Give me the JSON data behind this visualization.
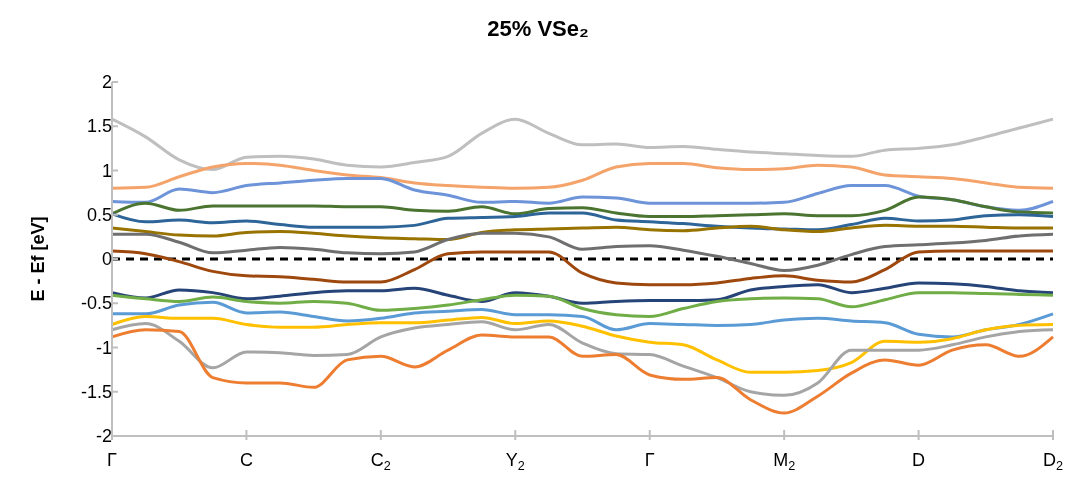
{
  "chart_data": {
    "type": "line",
    "title": "25% VSe₂",
    "ylabel": "E - Ef [eV]",
    "categories": [
      "Γ",
      null,
      null,
      null,
      "C",
      null,
      null,
      null,
      "C$_{2}$",
      null,
      null,
      null,
      "Y$_{2}$",
      null,
      null,
      null,
      "Γ",
      null,
      null,
      null,
      "M$_{2}$",
      null,
      null,
      null,
      "D",
      null,
      null,
      null,
      "D$_{2}$"
    ],
    "ylim": [
      -2,
      2
    ],
    "yticks": [
      -2,
      -1.5,
      -1,
      -0.5,
      0,
      0.5,
      1,
      1.5,
      2
    ],
    "grid": false,
    "legend": false,
    "marker": "none",
    "line_style": "solid",
    "ref_lines": [
      {
        "axis": "y",
        "value": 0,
        "color": "#000000",
        "line_style": "dashed"
      }
    ],
    "series": [
      {
        "color": "#bfbfbf",
        "values": [
          1.58,
          1.38,
          1.12,
          1.01,
          1.15,
          1.16,
          1.13,
          1.06,
          1.04,
          1.09,
          1.16,
          1.42,
          1.58,
          1.42,
          1.29,
          1.3,
          1.26,
          1.27,
          1.24,
          1.21,
          1.19,
          1.17,
          1.16,
          1.23,
          1.25,
          1.29,
          1.38,
          1.48,
          1.58
        ]
      },
      {
        "color": "#f4a46a",
        "values": [
          0.8,
          0.81,
          0.93,
          1.04,
          1.08,
          1.06,
          1,
          0.95,
          0.92,
          0.86,
          0.83,
          0.81,
          0.8,
          0.81,
          0.89,
          1.04,
          1.08,
          1.08,
          1.03,
          1.01,
          1.02,
          1.06,
          1.04,
          0.95,
          0.93,
          0.91,
          0.86,
          0.81,
          0.8
        ]
      },
      {
        "color": "#6d93d8",
        "values": [
          0.65,
          0.64,
          0.79,
          0.75,
          0.83,
          0.86,
          0.89,
          0.91,
          0.91,
          0.78,
          0.72,
          0.64,
          0.65,
          0.63,
          0.7,
          0.69,
          0.63,
          0.63,
          0.63,
          0.63,
          0.64,
          0.74,
          0.83,
          0.83,
          0.71,
          0.67,
          0.59,
          0.55,
          0.65
        ]
      },
      {
        "color": "#4a7430",
        "values": [
          0.51,
          0.63,
          0.55,
          0.6,
          0.6,
          0.6,
          0.6,
          0.59,
          0.59,
          0.55,
          0.54,
          0.59,
          0.51,
          0.57,
          0.58,
          0.52,
          0.48,
          0.48,
          0.49,
          0.5,
          0.51,
          0.49,
          0.49,
          0.55,
          0.7,
          0.67,
          0.59,
          0.53,
          0.52
        ]
      },
      {
        "color": "#2e6599",
        "values": [
          0.51,
          0.42,
          0.44,
          0.41,
          0.43,
          0.39,
          0.36,
          0.36,
          0.36,
          0.38,
          0.46,
          0.47,
          0.48,
          0.52,
          0.52,
          0.44,
          0.42,
          0.4,
          0.37,
          0.35,
          0.34,
          0.33,
          0.39,
          0.46,
          0.43,
          0.44,
          0.49,
          0.5,
          0.48
        ]
      },
      {
        "color": "#997300",
        "values": [
          0.35,
          0.31,
          0.27,
          0.26,
          0.3,
          0.31,
          0.29,
          0.26,
          0.24,
          0.23,
          0.22,
          0.3,
          0.33,
          0.34,
          0.35,
          0.36,
          0.33,
          0.32,
          0.35,
          0.37,
          0.33,
          0.31,
          0.35,
          0.38,
          0.37,
          0.37,
          0.36,
          0.35,
          0.35
        ]
      },
      {
        "color": "#6f6f6f",
        "values": [
          0.28,
          0.28,
          0.19,
          0.07,
          0.1,
          0.13,
          0.11,
          0.07,
          0.06,
          0.08,
          0.22,
          0.29,
          0.29,
          0.25,
          0.11,
          0.14,
          0.15,
          0.1,
          0.03,
          -0.05,
          -0.13,
          -0.07,
          0.05,
          0.14,
          0.16,
          0.18,
          0.21,
          0.26,
          0.28
        ]
      },
      {
        "color": "#9e480e",
        "values": [
          0.09,
          0.06,
          -0.03,
          -0.14,
          -0.19,
          -0.2,
          -0.23,
          -0.26,
          -0.26,
          -0.12,
          0.06,
          0.08,
          0.08,
          0.08,
          -0.16,
          -0.27,
          -0.29,
          -0.29,
          -0.27,
          -0.22,
          -0.19,
          -0.24,
          -0.26,
          -0.12,
          0.08,
          0.09,
          0.09,
          0.09,
          0.09
        ]
      },
      {
        "color": "#264478",
        "values": [
          -0.38,
          -0.44,
          -0.35,
          -0.38,
          -0.45,
          -0.42,
          -0.38,
          -0.36,
          -0.36,
          -0.33,
          -0.41,
          -0.48,
          -0.38,
          -0.42,
          -0.5,
          -0.48,
          -0.47,
          -0.47,
          -0.46,
          -0.35,
          -0.31,
          -0.29,
          -0.38,
          -0.33,
          -0.27,
          -0.28,
          -0.31,
          -0.36,
          -0.38
        ]
      },
      {
        "color": "#70ad47",
        "values": [
          -0.41,
          -0.45,
          -0.48,
          -0.43,
          -0.48,
          -0.5,
          -0.48,
          -0.5,
          -0.58,
          -0.56,
          -0.52,
          -0.46,
          -0.41,
          -0.42,
          -0.56,
          -0.63,
          -0.65,
          -0.56,
          -0.48,
          -0.45,
          -0.44,
          -0.45,
          -0.54,
          -0.46,
          -0.38,
          -0.38,
          -0.39,
          -0.4,
          -0.41
        ]
      },
      {
        "color": "#5b9bd5",
        "values": [
          -0.62,
          -0.62,
          -0.52,
          -0.49,
          -0.61,
          -0.6,
          -0.65,
          -0.7,
          -0.67,
          -0.61,
          -0.59,
          -0.57,
          -0.63,
          -0.63,
          -0.65,
          -0.8,
          -0.73,
          -0.74,
          -0.75,
          -0.74,
          -0.69,
          -0.67,
          -0.7,
          -0.72,
          -0.85,
          -0.88,
          -0.8,
          -0.74,
          -0.62
        ]
      },
      {
        "color": "#ffc000",
        "values": [
          -0.74,
          -0.65,
          -0.67,
          -0.67,
          -0.74,
          -0.77,
          -0.77,
          -0.74,
          -0.72,
          -0.72,
          -0.69,
          -0.66,
          -0.73,
          -0.7,
          -0.76,
          -0.87,
          -0.94,
          -0.97,
          -1.14,
          -1.28,
          -1.28,
          -1.26,
          -1.17,
          -0.93,
          -0.94,
          -0.9,
          -0.8,
          -0.75,
          -0.74
        ]
      },
      {
        "color": "#a5a5a5",
        "values": [
          -0.8,
          -0.73,
          -0.93,
          -1.23,
          -1.05,
          -1.06,
          -1.09,
          -1.08,
          -0.88,
          -0.78,
          -0.74,
          -0.71,
          -0.8,
          -0.74,
          -0.95,
          -1.07,
          -1.08,
          -1.21,
          -1.34,
          -1.5,
          -1.54,
          -1.4,
          -1.03,
          -1.03,
          -1.03,
          -0.97,
          -0.88,
          -0.82,
          -0.8
        ]
      },
      {
        "color": "#ed7d31",
        "values": [
          -0.88,
          -0.8,
          -0.82,
          -1.34,
          -1.4,
          -1.4,
          -1.45,
          -1.14,
          -1.1,
          -1.22,
          -1.03,
          -0.86,
          -0.88,
          -0.88,
          -1.1,
          -1.08,
          -1.31,
          -1.36,
          -1.34,
          -1.59,
          -1.74,
          -1.55,
          -1.29,
          -1.14,
          -1.2,
          -1.03,
          -0.97,
          -1.1,
          -0.88
        ]
      }
    ]
  }
}
